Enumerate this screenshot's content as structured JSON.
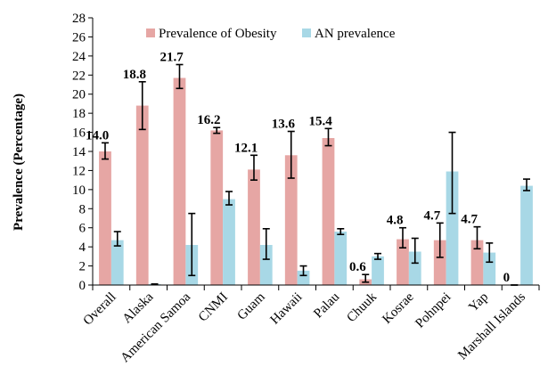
{
  "chart_data": {
    "type": "bar",
    "ylabel": "Prevalence (Percentage)",
    "xlabel": "",
    "ylim": [
      0,
      28
    ],
    "yticks": [
      0,
      2,
      4,
      6,
      8,
      10,
      12,
      14,
      16,
      18,
      20,
      22,
      24,
      26,
      28
    ],
    "grid": false,
    "legend_position": "top-center",
    "categories": [
      "Overall",
      "Alaska",
      "American Samoa",
      "CNMI",
      "Guam",
      "Hawaii",
      "Palau",
      "Chuuk",
      "Kosrae",
      "Pohnpei",
      "Yap",
      "Marshall Islands"
    ],
    "series": [
      {
        "name": "Prevalence of Obesity",
        "color": "#e6a6a4",
        "values": [
          14.0,
          18.8,
          21.7,
          16.2,
          12.1,
          13.6,
          15.4,
          0.6,
          4.8,
          4.7,
          4.7,
          0
        ],
        "error_low": [
          13.2,
          16.3,
          20.6,
          15.9,
          11.0,
          11.2,
          14.6,
          0.3,
          3.9,
          2.9,
          3.8,
          0
        ],
        "error_high": [
          14.9,
          21.3,
          23.1,
          16.5,
          13.6,
          16.1,
          16.4,
          1.1,
          6.0,
          6.5,
          6.1,
          0
        ],
        "labels": [
          "14.0",
          "18.8",
          "21.7",
          "16.2",
          "12.1",
          "13.6",
          "15.4",
          "0.6",
          "4.8",
          "4.7",
          "4.7",
          "0"
        ]
      },
      {
        "name": "AN prevalence",
        "color": "#a8d8e6",
        "values": [
          4.7,
          0.1,
          4.2,
          9.0,
          4.2,
          1.5,
          5.6,
          3.0,
          3.5,
          11.9,
          3.4,
          10.4
        ],
        "error_low": [
          4.1,
          0.1,
          1.0,
          8.4,
          2.7,
          1.0,
          5.3,
          2.7,
          2.3,
          7.5,
          2.4,
          9.9
        ],
        "error_high": [
          5.6,
          0.1,
          7.5,
          9.8,
          5.9,
          2.0,
          5.9,
          3.3,
          4.9,
          16.0,
          4.4,
          11.1
        ]
      }
    ]
  }
}
